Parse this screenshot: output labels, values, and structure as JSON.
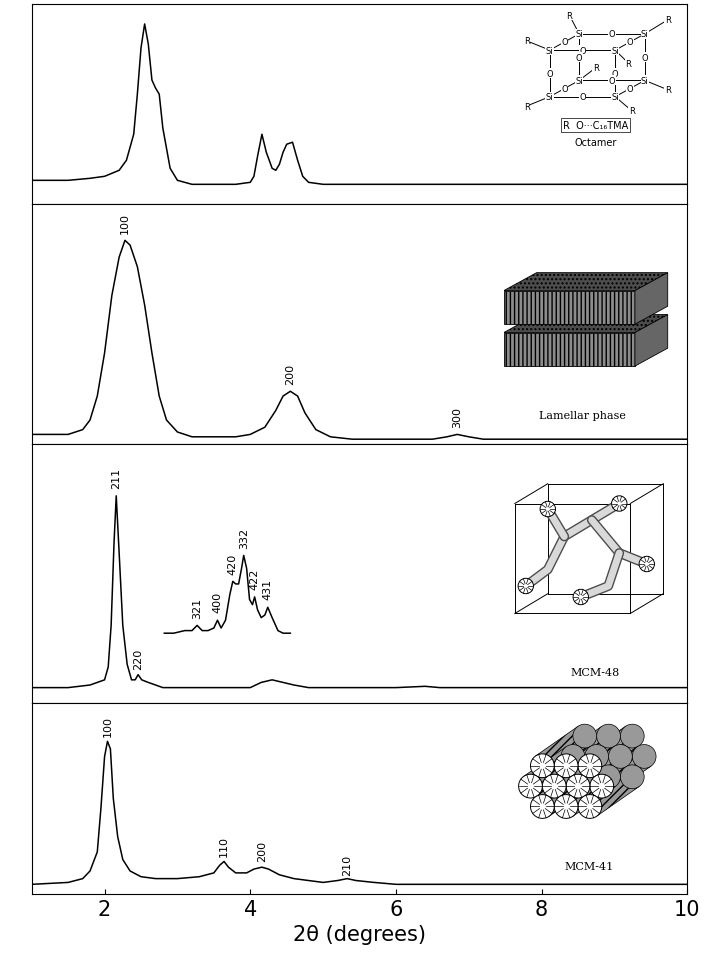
{
  "chart_data": [
    {
      "type": "line",
      "name": "Octamer",
      "color": "#000000",
      "structure": {
        "atom": "Si",
        "bridge": "O",
        "group": "R",
        "key": "R  O···C₁₆TMA"
      },
      "xlim": [
        1,
        10
      ],
      "ylim": [
        0,
        100
      ],
      "tick_labels": false,
      "series": [
        {
          "x": [
            1.0,
            1.5,
            1.8,
            2.0,
            2.2,
            2.3,
            2.4,
            2.45,
            2.5,
            2.55,
            2.6,
            2.65,
            2.7,
            2.75,
            2.8,
            2.9,
            3.0,
            3.2,
            3.5,
            3.8,
            4.0,
            4.05,
            4.1,
            4.16,
            4.22,
            4.3,
            4.35,
            4.4,
            4.45,
            4.5,
            4.58,
            4.65,
            4.72,
            4.8,
            5.0,
            5.5,
            6,
            7,
            8,
            9,
            10
          ],
          "values": [
            12,
            12,
            13,
            14,
            17,
            22,
            35,
            55,
            78,
            90,
            80,
            62,
            58,
            55,
            38,
            18,
            12,
            10,
            10,
            10,
            11,
            14,
            24,
            35,
            26,
            18,
            17,
            20,
            26,
            30,
            31,
            22,
            14,
            11,
            10,
            10,
            10,
            10,
            10,
            10,
            10
          ]
        }
      ],
      "annotations": []
    },
    {
      "type": "line",
      "name": "Lamellar phase",
      "color": "#000000",
      "xlim": [
        1,
        10
      ],
      "ylim": [
        0,
        100
      ],
      "tick_labels": false,
      "series": [
        {
          "x": [
            1.0,
            1.5,
            1.7,
            1.8,
            1.9,
            2.0,
            2.1,
            2.2,
            2.28,
            2.35,
            2.45,
            2.55,
            2.65,
            2.75,
            2.85,
            3.0,
            3.2,
            3.5,
            3.8,
            4.0,
            4.2,
            4.35,
            4.45,
            4.55,
            4.65,
            4.75,
            4.9,
            5.1,
            5.4,
            6.0,
            6.5,
            6.7,
            6.84,
            7.0,
            7.2,
            8,
            9,
            10
          ],
          "values": [
            4,
            4,
            6,
            10,
            20,
            38,
            62,
            78,
            85,
            83,
            74,
            58,
            38,
            20,
            10,
            5,
            3,
            3,
            3,
            4,
            7,
            14,
            20,
            22,
            20,
            13,
            6,
            3,
            2,
            2,
            2,
            3,
            4,
            3,
            2,
            2,
            2,
            2
          ]
        }
      ],
      "annotations": [
        {
          "text": "100",
          "x": 2.28,
          "y": 88
        },
        {
          "text": "200",
          "x": 4.55,
          "y": 25
        },
        {
          "text": "300",
          "x": 6.84,
          "y": 7
        }
      ]
    },
    {
      "type": "line",
      "name": "MCM-48",
      "color": "#000000",
      "xlim": [
        1,
        10
      ],
      "ylim": [
        0,
        100
      ],
      "tick_labels": false,
      "series": [
        {
          "x": [
            1.0,
            1.5,
            1.8,
            2.0,
            2.05,
            2.09,
            2.13,
            2.16,
            2.2,
            2.25,
            2.31,
            2.37,
            2.42,
            2.46,
            2.51,
            2.6,
            2.8,
            3.0,
            3.5,
            4.0,
            4.15,
            4.3,
            4.45,
            4.6,
            4.8,
            5.0,
            6,
            6.4,
            6.6,
            7,
            8,
            9,
            10
          ],
          "values": [
            6,
            6,
            7,
            9,
            14,
            30,
            62,
            80,
            58,
            30,
            15,
            9,
            9,
            11,
            9,
            8,
            6,
            6,
            6,
            6,
            8,
            9,
            8,
            7,
            6,
            6,
            6,
            6.5,
            6,
            6,
            6,
            6,
            6
          ]
        },
        {
          "x": [
            2.82,
            2.95,
            3.1,
            3.2,
            3.27,
            3.34,
            3.42,
            3.5,
            3.55,
            3.6,
            3.66,
            3.72,
            3.76,
            3.8,
            3.84,
            3.88,
            3.91,
            3.95,
            3.99,
            4.03,
            4.06,
            4.1,
            4.15,
            4.2,
            4.24,
            4.3,
            4.38,
            4.45,
            4.55
          ],
          "values": [
            27,
            27,
            28,
            28,
            30,
            28,
            28,
            29,
            32,
            29,
            32,
            42,
            47,
            46,
            46,
            52,
            57,
            52,
            40,
            38,
            41,
            36,
            33,
            34,
            37,
            33,
            28,
            27,
            27
          ]
        }
      ],
      "annotations": [
        {
          "text": "211",
          "x": 2.16,
          "y": 83
        },
        {
          "text": "220",
          "x": 2.46,
          "y": 13
        },
        {
          "text": "321",
          "x": 3.27,
          "y": 33
        },
        {
          "text": "400",
          "x": 3.55,
          "y": 35
        },
        {
          "text": "420",
          "x": 3.76,
          "y": 50
        },
        {
          "text": "332",
          "x": 3.91,
          "y": 60
        },
        {
          "text": "422",
          "x": 4.06,
          "y": 44
        },
        {
          "text": "431",
          "x": 4.24,
          "y": 40
        }
      ]
    },
    {
      "type": "line",
      "name": "MCM-41",
      "color": "#000000",
      "xlim": [
        1,
        10
      ],
      "ylim": [
        0,
        100
      ],
      "xticks": [
        2,
        4,
        6,
        8,
        10
      ],
      "tick_labels": "x",
      "xlabel": "2θ (degrees)",
      "series": [
        {
          "x": [
            1.0,
            1.5,
            1.7,
            1.8,
            1.9,
            1.95,
            2.0,
            2.04,
            2.08,
            2.12,
            2.18,
            2.25,
            2.35,
            2.5,
            2.7,
            3.0,
            3.3,
            3.5,
            3.58,
            3.64,
            3.7,
            3.8,
            3.95,
            4.05,
            4.16,
            4.25,
            4.4,
            4.6,
            5.0,
            5.2,
            5.33,
            5.45,
            5.7,
            6,
            7,
            8,
            9,
            10
          ],
          "values": [
            5,
            6,
            8,
            12,
            22,
            45,
            72,
            80,
            76,
            50,
            30,
            18,
            12,
            9,
            8,
            8,
            9,
            11,
            15,
            17,
            14,
            11,
            11,
            13,
            14,
            13,
            10,
            8,
            6,
            7,
            8,
            7,
            6,
            5,
            5,
            5,
            5,
            5
          ]
        }
      ],
      "annotations": [
        {
          "text": "100",
          "x": 2.04,
          "y": 83
        },
        {
          "text": "110",
          "x": 3.64,
          "y": 20
        },
        {
          "text": "200",
          "x": 4.16,
          "y": 17
        },
        {
          "text": "210",
          "x": 5.33,
          "y": 10
        }
      ]
    }
  ]
}
